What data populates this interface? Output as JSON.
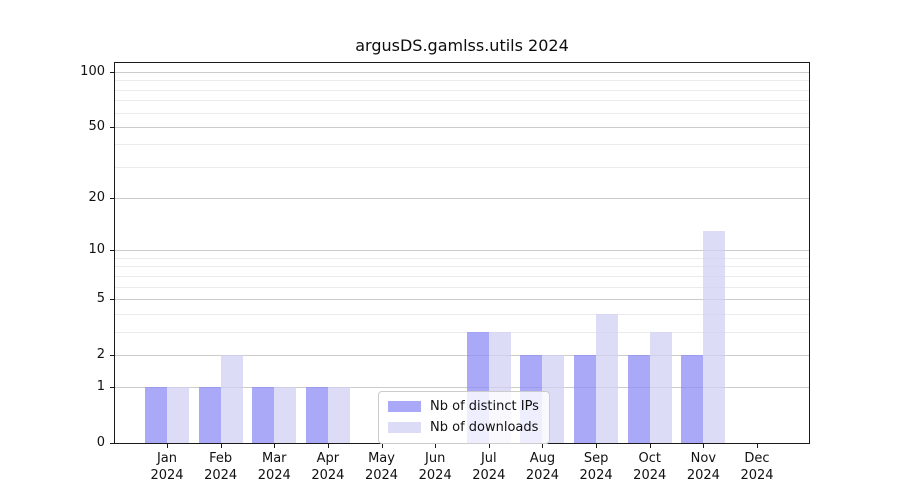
{
  "chart_data": {
    "type": "bar",
    "title": "argusDS.gamlss.utils 2024",
    "year_label": "2024",
    "categories": [
      "Jan",
      "Feb",
      "Mar",
      "Apr",
      "May",
      "Jun",
      "Jul",
      "Aug",
      "Sep",
      "Oct",
      "Nov",
      "Dec"
    ],
    "series": [
      {
        "name": "Nb of distinct IPs",
        "color": "#8c8cf4",
        "alpha": 0.75,
        "values": [
          1,
          1,
          1,
          1,
          0,
          0,
          3,
          2,
          2,
          2,
          2,
          0
        ]
      },
      {
        "name": "Nb of downloads",
        "color": "#d0d0f3",
        "alpha": 0.75,
        "values": [
          1,
          2,
          1,
          1,
          0,
          0,
          3,
          2,
          4,
          3,
          13,
          0
        ]
      }
    ],
    "xlabel": "",
    "ylabel": "",
    "yscale": "log1p",
    "ylim": [
      0,
      112
    ],
    "yticks": [
      0,
      1,
      2,
      5,
      10,
      20,
      50,
      100
    ],
    "yticks_minor": [
      3,
      4,
      6,
      7,
      8,
      9,
      30,
      40,
      60,
      70,
      80,
      90
    ],
    "grid": {
      "major_color": "#cccccc",
      "minor_color": "#ebebeb"
    },
    "legend": {
      "position": "lower center inside"
    }
  }
}
